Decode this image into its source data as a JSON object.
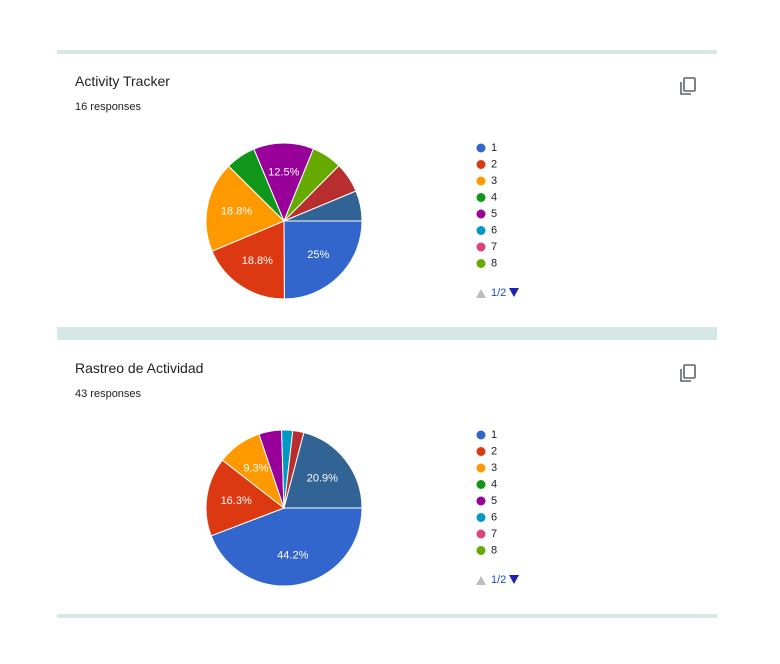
{
  "chart_data": [
    {
      "type": "pie",
      "title": "Activity Tracker",
      "subtitle": "16 responses",
      "categories": [
        "1",
        "2",
        "3",
        "4",
        "5",
        "6",
        "7",
        "8",
        null,
        null
      ],
      "values": [
        25,
        18.8,
        18.8,
        6.3,
        12.5,
        0,
        0,
        6.3,
        6.3,
        6.3
      ],
      "value_labels": [
        "25%",
        "18.8%",
        "18.8%",
        null,
        "12.5%",
        null,
        null,
        null,
        null,
        null
      ],
      "colors": [
        "#3366cc",
        "#dc3912",
        "#ff9900",
        "#109618",
        "#990099",
        "#0099c6",
        "#dd4477",
        "#66aa00",
        "#b82e2e",
        "#316395"
      ],
      "page_label": "1/2"
    },
    {
      "type": "pie",
      "title": "Rastreo de Actividad",
      "subtitle": "43 responses",
      "categories": [
        "1",
        "2",
        "3",
        "4",
        "5",
        "6",
        "7",
        "8",
        null,
        null
      ],
      "values": [
        44.2,
        16.3,
        9.3,
        0,
        4.7,
        2.3,
        0,
        0,
        2.3,
        20.9
      ],
      "value_labels": [
        "44.2%",
        "16.3%",
        "9.3%",
        null,
        null,
        null,
        null,
        null,
        null,
        "20.9%"
      ],
      "colors": [
        "#3366cc",
        "#dc3912",
        "#ff9900",
        "#109618",
        "#990099",
        "#0099c6",
        "#dd4477",
        "#66aa00",
        "#b82e2e",
        "#316395"
      ],
      "page_label": "1/2"
    }
  ]
}
